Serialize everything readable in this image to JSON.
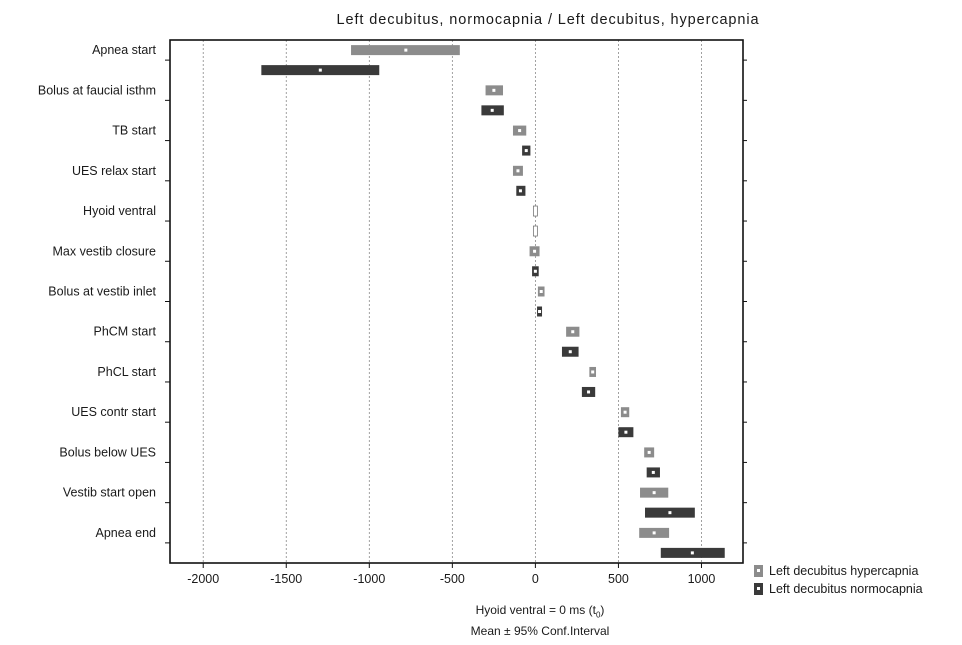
{
  "chart_data": {
    "type": "interval",
    "title": "Left decubitus, normocapnia / Left decubitus, hypercapnia",
    "xlabel_pre": "Hyoid ventral = 0 ms (t",
    "xlabel_sub": "0",
    "xlabel_post": ")",
    "xlabel_line2": "Mean ± 95% Conf.Interval",
    "xlim": [
      -2200,
      1250
    ],
    "xticks": [
      -2000,
      -1500,
      -1000,
      -500,
      0,
      500,
      1000
    ],
    "grid": true,
    "legend_position": "bottom-right",
    "categories": [
      "Apnea start",
      "Bolus at faucial isthm",
      "TB start",
      "UES relax start",
      "Hyoid ventral",
      "Max vestib closure",
      "Bolus at vestib inlet",
      "PhCM start",
      "PhCL start",
      "UES contr start",
      "Bolus below UES",
      "Vestib start open",
      "Apnea end"
    ],
    "series": [
      {
        "name": "Left decubitus hypercapnia",
        "color": "#8c8c8c",
        "mean": [
          -780,
          -250,
          -95,
          -105,
          0,
          -5,
          35,
          225,
          345,
          540,
          685,
          715,
          715
        ],
        "lower": [
          -1110,
          -300,
          -135,
          -135,
          -2,
          -35,
          15,
          185,
          325,
          515,
          655,
          630,
          625
        ],
        "upper": [
          -455,
          -195,
          -55,
          -75,
          2,
          25,
          55,
          265,
          365,
          565,
          715,
          800,
          805
        ]
      },
      {
        "name": "Left decubitus normocapnia",
        "color": "#3a3a3a",
        "mean": [
          -1295,
          -260,
          -55,
          -90,
          0,
          0,
          25,
          210,
          320,
          545,
          710,
          810,
          945
        ],
        "lower": [
          -1650,
          -325,
          -80,
          -115,
          -2,
          -20,
          10,
          160,
          280,
          500,
          670,
          660,
          755
        ],
        "upper": [
          -940,
          -190,
          -30,
          -60,
          2,
          20,
          40,
          260,
          360,
          590,
          750,
          960,
          1140
        ]
      }
    ]
  }
}
